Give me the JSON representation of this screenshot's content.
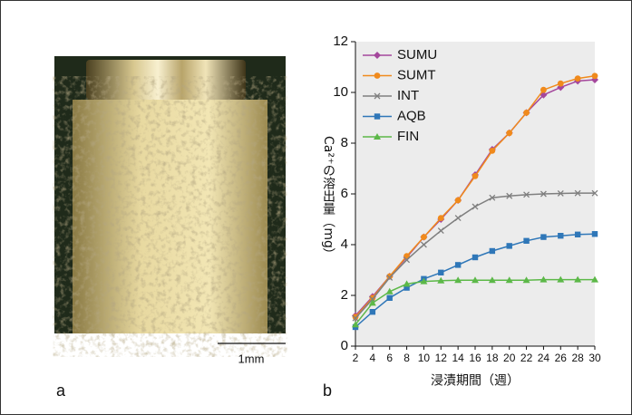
{
  "panels": {
    "a": {
      "label": "a",
      "scale_bar": "1mm"
    },
    "b": {
      "label": "b"
    }
  },
  "chart_data": {
    "type": "line",
    "y_label": "Ca²⁺の溶出量（mg）",
    "x_label": "浸漬期間（週）",
    "x": [
      2,
      4,
      6,
      8,
      10,
      12,
      14,
      16,
      18,
      20,
      22,
      24,
      26,
      28,
      30
    ],
    "xlim": [
      2,
      30
    ],
    "xticks": [
      2,
      4,
      6,
      8,
      10,
      12,
      14,
      16,
      18,
      20,
      22,
      24,
      26,
      28,
      30
    ],
    "ylim": [
      0,
      12
    ],
    "yticks": [
      0,
      2,
      4,
      6,
      8,
      10,
      12
    ],
    "grid": false,
    "legend": "upper left",
    "series": [
      {
        "name": "SUMU",
        "color": "#a4479c",
        "marker": "diamond",
        "values": [
          1.2,
          1.95,
          2.75,
          3.5,
          4.3,
          5.0,
          5.75,
          6.75,
          7.75,
          8.4,
          9.2,
          9.9,
          10.2,
          10.45,
          10.5
        ]
      },
      {
        "name": "SUMT",
        "color": "#f08a1c",
        "marker": "circle",
        "values": [
          1.15,
          1.9,
          2.75,
          3.55,
          4.3,
          5.05,
          5.75,
          6.7,
          7.7,
          8.4,
          9.2,
          10.1,
          10.35,
          10.55,
          10.65
        ]
      },
      {
        "name": "INT",
        "color": "#7f7f7f",
        "marker": "x",
        "values": [
          1.1,
          1.85,
          2.7,
          3.4,
          4.0,
          4.55,
          5.05,
          5.5,
          5.85,
          5.92,
          5.97,
          6.0,
          6.02,
          6.03,
          6.03
        ]
      },
      {
        "name": "AQB",
        "color": "#2f77b8",
        "marker": "square",
        "values": [
          0.75,
          1.35,
          1.9,
          2.3,
          2.65,
          2.9,
          3.2,
          3.5,
          3.75,
          3.95,
          4.15,
          4.3,
          4.35,
          4.4,
          4.42
        ]
      },
      {
        "name": "FIN",
        "color": "#5cb848",
        "marker": "triangle",
        "values": [
          0.85,
          1.7,
          2.15,
          2.45,
          2.55,
          2.58,
          2.6,
          2.6,
          2.6,
          2.6,
          2.6,
          2.62,
          2.62,
          2.62,
          2.62
        ]
      }
    ]
  }
}
